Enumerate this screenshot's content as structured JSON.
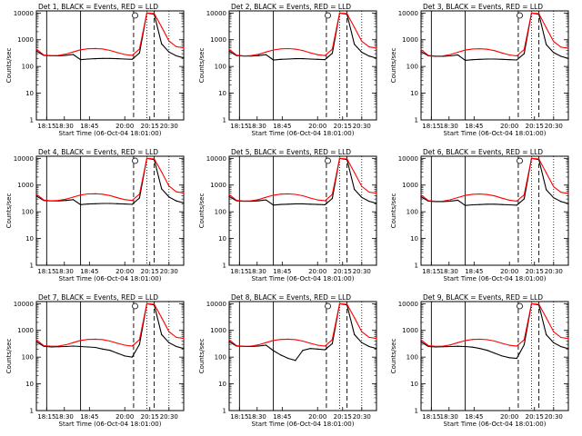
{
  "colors": {
    "events": "#000000",
    "lld": "#ff0000",
    "frame": "#000000"
  },
  "common": {
    "ylabel": "Counts/sec",
    "xlabel": "Start Time (06-Oct-04 18:01:00)",
    "x_tick_labels": [
      "18:15",
      "18:30",
      "18:45",
      "20:00",
      "20:15",
      "20:30"
    ],
    "y_tick_labels": [
      "1",
      "10",
      "100",
      "1000",
      "10000"
    ]
  },
  "chart_data": [
    {
      "type": "line",
      "title": "Det 1, BLACK = Events, RED = LLD",
      "xlabel": "Start Time (06-Oct-04 18:01:00)",
      "ylabel": "Counts/sec",
      "y_scale": "log",
      "ylim": [
        1,
        12000
      ],
      "x": [
        0,
        0.05,
        0.1,
        0.15,
        0.2,
        0.25,
        0.3,
        0.35,
        0.4,
        0.45,
        0.5,
        0.55,
        0.6,
        0.65,
        0.7,
        0.75,
        0.8,
        0.85,
        0.9,
        0.95,
        1
      ],
      "series": [
        {
          "name": "Events",
          "values": [
            380,
            260,
            250,
            250,
            260,
            280,
            180,
            190,
            195,
            200,
            200,
            195,
            190,
            185,
            320,
            10000,
            9000,
            700,
            350,
            250,
            210
          ]
        },
        {
          "name": "LLD",
          "values": [
            450,
            270,
            255,
            260,
            290,
            350,
            420,
            460,
            470,
            450,
            400,
            330,
            280,
            260,
            450,
            10000,
            9500,
            3000,
            900,
            550,
            500
          ]
        }
      ]
    },
    {
      "type": "line",
      "title": "Det 2, BLACK = Events, RED = LLD",
      "xlabel": "Start Time (06-Oct-04 18:01:00)",
      "ylabel": "Counts/sec",
      "y_scale": "log",
      "ylim": [
        1,
        12000
      ],
      "x": [
        0,
        0.05,
        0.1,
        0.15,
        0.2,
        0.25,
        0.3,
        0.35,
        0.4,
        0.45,
        0.5,
        0.55,
        0.6,
        0.65,
        0.7,
        0.75,
        0.8,
        0.85,
        0.9,
        0.95,
        1
      ],
      "series": [
        {
          "name": "Events",
          "values": [
            370,
            255,
            245,
            245,
            255,
            275,
            175,
            185,
            190,
            195,
            195,
            190,
            185,
            180,
            310,
            10000,
            9000,
            680,
            340,
            245,
            205
          ]
        },
        {
          "name": "LLD",
          "values": [
            440,
            265,
            250,
            255,
            285,
            345,
            415,
            455,
            465,
            445,
            395,
            325,
            275,
            255,
            440,
            10000,
            9500,
            2900,
            880,
            540,
            490
          ]
        }
      ]
    },
    {
      "type": "line",
      "title": "Det 3, BLACK = Events, RED = LLD",
      "xlabel": "Start Time (06-Oct-04 18:01:00)",
      "ylabel": "Counts/sec",
      "y_scale": "log",
      "ylim": [
        1,
        12000
      ],
      "x": [
        0,
        0.05,
        0.1,
        0.15,
        0.2,
        0.25,
        0.3,
        0.35,
        0.4,
        0.45,
        0.5,
        0.55,
        0.6,
        0.65,
        0.7,
        0.75,
        0.8,
        0.85,
        0.9,
        0.95,
        1
      ],
      "series": [
        {
          "name": "Events",
          "values": [
            360,
            250,
            240,
            240,
            250,
            270,
            170,
            180,
            185,
            190,
            190,
            185,
            180,
            175,
            300,
            10000,
            9000,
            660,
            330,
            240,
            200
          ]
        },
        {
          "name": "LLD",
          "values": [
            430,
            260,
            245,
            250,
            280,
            340,
            410,
            450,
            460,
            440,
            390,
            320,
            270,
            250,
            430,
            10000,
            9500,
            2800,
            860,
            530,
            480
          ]
        }
      ]
    },
    {
      "type": "line",
      "title": "Det 4, BLACK = Events, RED = LLD",
      "xlabel": "Start Time (06-Oct-04 18:01:00)",
      "ylabel": "Counts/sec",
      "y_scale": "log",
      "ylim": [
        1,
        12000
      ],
      "x": [
        0,
        0.05,
        0.1,
        0.15,
        0.2,
        0.25,
        0.3,
        0.35,
        0.4,
        0.45,
        0.5,
        0.55,
        0.6,
        0.65,
        0.7,
        0.75,
        0.8,
        0.85,
        0.9,
        0.95,
        1
      ],
      "series": [
        {
          "name": "Events",
          "values": [
            390,
            265,
            255,
            255,
            265,
            285,
            185,
            195,
            200,
            205,
            205,
            200,
            195,
            190,
            330,
            10000,
            9000,
            720,
            360,
            255,
            215
          ]
        },
        {
          "name": "LLD",
          "values": [
            460,
            275,
            260,
            265,
            295,
            355,
            425,
            465,
            475,
            455,
            405,
            335,
            285,
            265,
            460,
            10000,
            9500,
            3100,
            920,
            560,
            510
          ]
        }
      ]
    },
    {
      "type": "line",
      "title": "Det 5, BLACK = Events, RED = LLD",
      "xlabel": "Start Time (06-Oct-04 18:01:00)",
      "ylabel": "Counts/sec",
      "y_scale": "log",
      "ylim": [
        1,
        12000
      ],
      "x": [
        0,
        0.05,
        0.1,
        0.15,
        0.2,
        0.25,
        0.3,
        0.35,
        0.4,
        0.45,
        0.5,
        0.55,
        0.6,
        0.65,
        0.7,
        0.75,
        0.8,
        0.85,
        0.9,
        0.95,
        1
      ],
      "series": [
        {
          "name": "Events",
          "values": [
            375,
            258,
            248,
            248,
            258,
            278,
            178,
            188,
            193,
            198,
            198,
            193,
            188,
            183,
            315,
            10000,
            9000,
            690,
            345,
            248,
            208
          ]
        },
        {
          "name": "LLD",
          "values": [
            445,
            268,
            253,
            258,
            288,
            348,
            418,
            458,
            468,
            448,
            398,
            328,
            278,
            258,
            445,
            10000,
            9500,
            2950,
            890,
            545,
            495
          ]
        }
      ]
    },
    {
      "type": "line",
      "title": "Det 6, BLACK = Events, RED = LLD",
      "xlabel": "Start Time (06-Oct-04 18:01:00)",
      "ylabel": "Counts/sec",
      "y_scale": "log",
      "ylim": [
        1,
        12000
      ],
      "x": [
        0,
        0.05,
        0.1,
        0.15,
        0.2,
        0.25,
        0.3,
        0.35,
        0.4,
        0.45,
        0.5,
        0.55,
        0.6,
        0.65,
        0.7,
        0.75,
        0.8,
        0.85,
        0.9,
        0.95,
        1
      ],
      "series": [
        {
          "name": "Events",
          "values": [
            365,
            252,
            242,
            242,
            252,
            272,
            172,
            182,
            187,
            192,
            192,
            187,
            182,
            177,
            305,
            10000,
            9000,
            670,
            335,
            242,
            202
          ]
        },
        {
          "name": "LLD",
          "values": [
            435,
            262,
            247,
            252,
            282,
            342,
            412,
            452,
            462,
            442,
            392,
            322,
            272,
            252,
            435,
            10000,
            9500,
            2850,
            870,
            535,
            485
          ]
        }
      ]
    },
    {
      "type": "line",
      "title": "Det 7, BLACK = Events, RED = LLD",
      "xlabel": "Start Time (06-Oct-04 18:01:00)",
      "ylabel": "Counts/sec",
      "y_scale": "log",
      "ylim": [
        1,
        12000
      ],
      "x": [
        0,
        0.05,
        0.1,
        0.15,
        0.2,
        0.25,
        0.3,
        0.35,
        0.4,
        0.45,
        0.5,
        0.55,
        0.6,
        0.65,
        0.7,
        0.75,
        0.8,
        0.85,
        0.9,
        0.95,
        1
      ],
      "series": [
        {
          "name": "Events",
          "values": [
            380,
            255,
            240,
            245,
            250,
            260,
            250,
            240,
            230,
            200,
            180,
            140,
            110,
            100,
            300,
            10000,
            9000,
            700,
            350,
            250,
            210
          ]
        },
        {
          "name": "LLD",
          "values": [
            450,
            270,
            255,
            260,
            290,
            350,
            420,
            460,
            470,
            450,
            400,
            330,
            280,
            260,
            450,
            10000,
            9500,
            3000,
            900,
            550,
            500
          ]
        }
      ]
    },
    {
      "type": "line",
      "title": "Det 8, BLACK = Events, RED = LLD",
      "xlabel": "Start Time (06-Oct-04 18:01:00)",
      "ylabel": "Counts/sec",
      "y_scale": "log",
      "ylim": [
        1,
        12000
      ],
      "x": [
        0,
        0.05,
        0.1,
        0.15,
        0.2,
        0.25,
        0.3,
        0.35,
        0.4,
        0.45,
        0.5,
        0.55,
        0.6,
        0.65,
        0.7,
        0.75,
        0.8,
        0.85,
        0.9,
        0.95,
        1
      ],
      "series": [
        {
          "name": "Events",
          "values": [
            380,
            260,
            250,
            250,
            260,
            280,
            175,
            120,
            90,
            75,
            180,
            210,
            200,
            190,
            320,
            10000,
            9000,
            700,
            350,
            250,
            210
          ]
        },
        {
          "name": "LLD",
          "values": [
            450,
            270,
            255,
            260,
            290,
            350,
            420,
            460,
            470,
            450,
            400,
            330,
            280,
            260,
            450,
            10000,
            9500,
            3000,
            900,
            550,
            500
          ]
        }
      ]
    },
    {
      "type": "line",
      "title": "Det 9, BLACK = Events, RED = LLD",
      "xlabel": "Start Time (06-Oct-04 18:01:00)",
      "ylabel": "Counts/sec",
      "y_scale": "log",
      "ylim": [
        1,
        12000
      ],
      "x": [
        0,
        0.05,
        0.1,
        0.15,
        0.2,
        0.25,
        0.3,
        0.35,
        0.4,
        0.45,
        0.5,
        0.55,
        0.6,
        0.65,
        0.7,
        0.75,
        0.8,
        0.85,
        0.9,
        0.95,
        1
      ],
      "series": [
        {
          "name": "Events",
          "values": [
            370,
            250,
            240,
            245,
            250,
            255,
            250,
            235,
            210,
            180,
            140,
            110,
            95,
            90,
            290,
            10000,
            9000,
            690,
            345,
            248,
            208
          ]
        },
        {
          "name": "LLD",
          "values": [
            445,
            268,
            253,
            258,
            288,
            348,
            418,
            458,
            468,
            448,
            398,
            328,
            278,
            258,
            445,
            10000,
            9500,
            2950,
            890,
            545,
            495
          ]
        }
      ]
    }
  ]
}
